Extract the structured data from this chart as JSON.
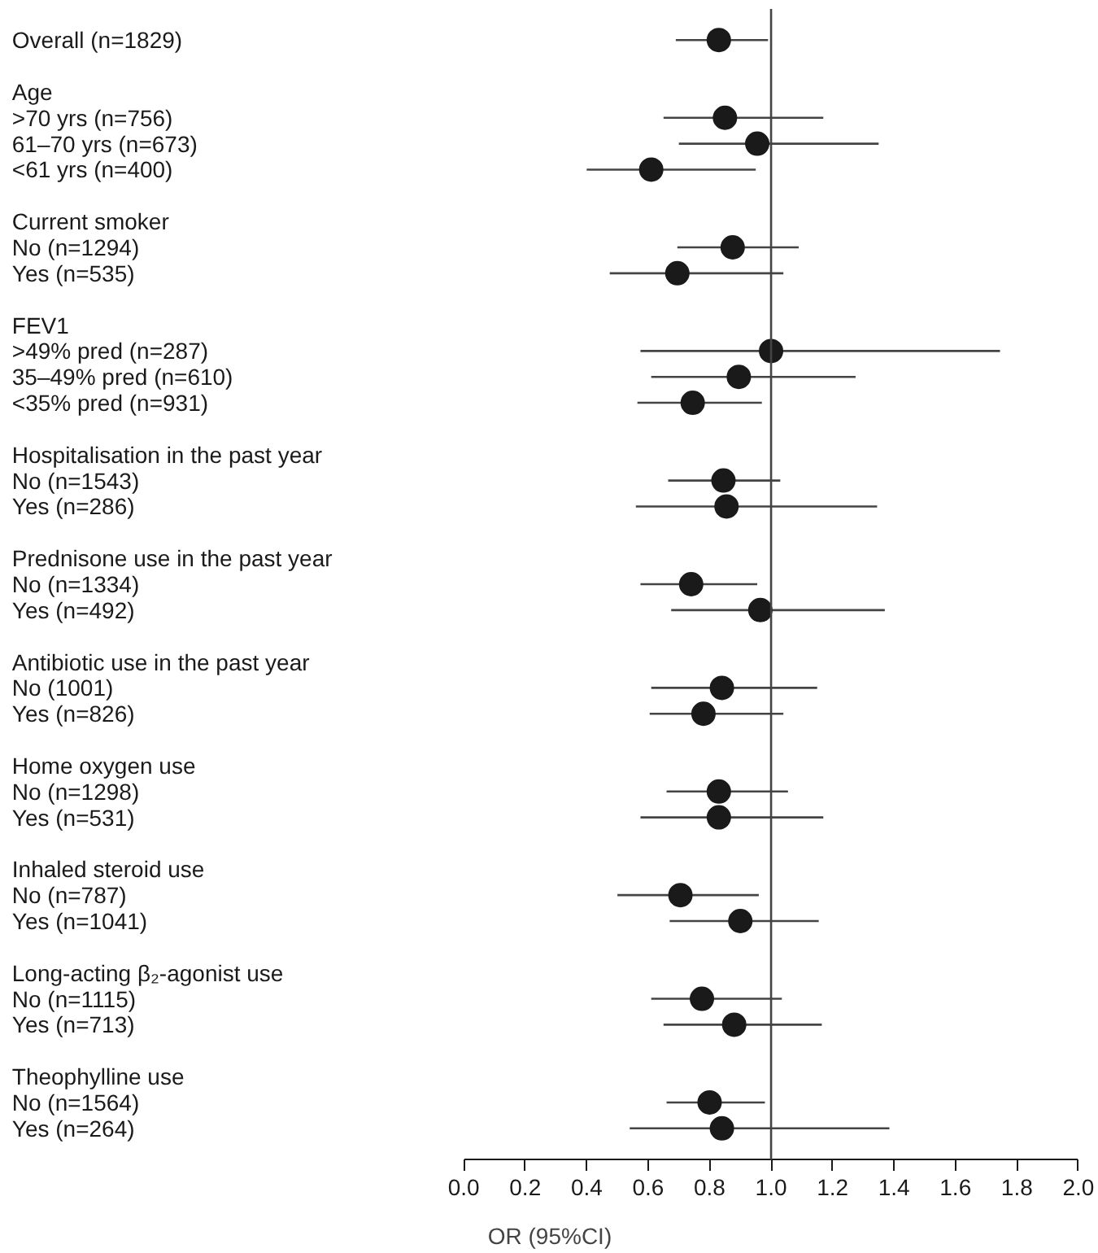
{
  "chart_data": {
    "type": "scatter",
    "orientation": "horizontal",
    "xlabel": "OR (95%CI)",
    "categories": [
      "Overall (n=1829)",
      null,
      "Age",
      ">70 yrs (n=756)",
      "61–70 yrs (n=673)",
      "<61 yrs (n=400)",
      null,
      "Current smoker",
      "No (n=1294)",
      "Yes (n=535)",
      null,
      "FEV1",
      ">49% pred (n=287)",
      "35–49% pred (n=610)",
      "<35% pred (n=931)",
      null,
      "Hospitalisation in the past year",
      "No (n=1543)",
      "Yes (n=286)",
      null,
      "Prednisone use in the past year",
      "No (n=1334)",
      "Yes (n=492)",
      null,
      "Antibiotic use in the past year",
      "No (1001)",
      "Yes (n=826)",
      null,
      "Home oxygen use",
      "No (n=1298)",
      "Yes (n=531)",
      null,
      "Inhaled steroid use",
      "No (n=787)",
      "Yes (n=1041)",
      null,
      "Long-acting β₂-agonist use",
      "No (n=1115)",
      "Yes (n=713)",
      null,
      "Theophylline use",
      "No (n=1564)",
      "Yes (n=264)"
    ],
    "values": [
      0.83,
      null,
      null,
      0.85,
      0.955,
      0.61,
      null,
      null,
      0.875,
      0.695,
      null,
      null,
      1.0,
      0.895,
      0.745,
      null,
      null,
      0.845,
      0.855,
      null,
      null,
      0.74,
      0.965,
      null,
      null,
      0.84,
      0.78,
      null,
      null,
      0.83,
      0.83,
      null,
      null,
      0.705,
      0.9,
      null,
      null,
      0.775,
      0.88,
      null,
      null,
      0.8,
      0.84
    ],
    "errors": [
      [
        0.69,
        0.99
      ],
      null,
      null,
      [
        0.65,
        1.17
      ],
      [
        0.7,
        1.35
      ],
      [
        0.4,
        0.95
      ],
      null,
      null,
      [
        0.695,
        1.09
      ],
      [
        0.475,
        1.04
      ],
      null,
      null,
      [
        0.575,
        1.745
      ],
      [
        0.61,
        1.275
      ],
      [
        0.565,
        0.97
      ],
      null,
      null,
      [
        0.665,
        1.03
      ],
      [
        0.56,
        1.345
      ],
      null,
      null,
      [
        0.575,
        0.955
      ],
      [
        0.675,
        1.37
      ],
      null,
      null,
      [
        0.61,
        1.15
      ],
      [
        0.605,
        1.04
      ],
      null,
      null,
      [
        0.66,
        1.055
      ],
      [
        0.575,
        1.17
      ],
      null,
      null,
      [
        0.5,
        0.96
      ],
      [
        0.67,
        1.155
      ],
      null,
      null,
      [
        0.61,
        1.035
      ],
      [
        0.65,
        1.165
      ],
      null,
      null,
      [
        0.66,
        0.98
      ],
      [
        0.54,
        1.385
      ]
    ],
    "color": "#1a1a1a",
    "marker": "circle",
    "grid": false,
    "xlim": [
      0,
      2
    ],
    "xticks": [
      {
        "value": 0,
        "label": "0.0"
      },
      {
        "value": 0.2,
        "label": "0.2"
      },
      {
        "value": 0.4,
        "label": "0.4"
      },
      {
        "value": 0.6,
        "label": "0.6"
      },
      {
        "value": 0.8,
        "label": "0.8"
      },
      {
        "value": 1,
        "label": "1.0"
      },
      {
        "value": 1.2,
        "label": "1.2"
      },
      {
        "value": 1.4,
        "label": "1.4"
      },
      {
        "value": 1.6,
        "label": "1.6"
      },
      {
        "value": 1.8,
        "label": "1.8"
      },
      {
        "value": 2,
        "label": "2.0"
      }
    ],
    "ref_lines": [
      {
        "axis": "x",
        "value": 1
      }
    ]
  }
}
